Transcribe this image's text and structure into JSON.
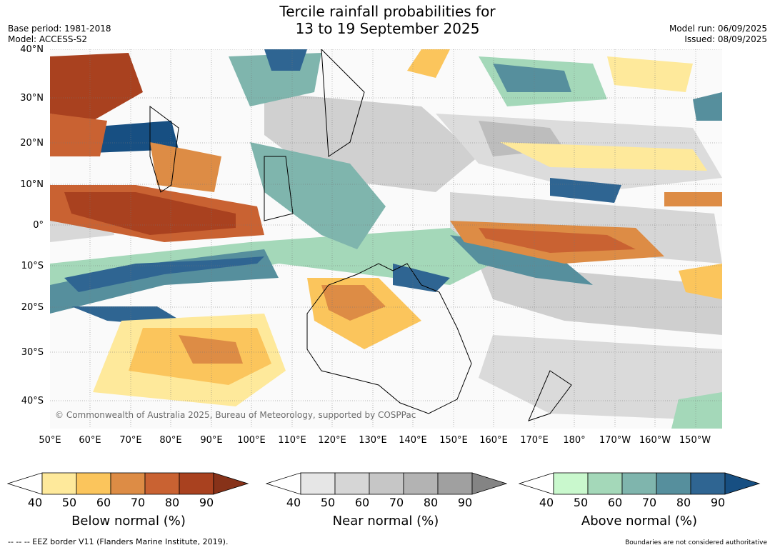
{
  "title_line1": "Tercile rainfall probabilities for",
  "title_line2": "13 to 19 September 2025",
  "base_period": "Base period: 1981-2018",
  "model": "Model: ACCESS-S2",
  "model_run": "Model run: 06/09/2025",
  "issued": "Issued: 08/09/2025",
  "copyright": "© Commonwealth of Australia 2025, Bureau of Meteorology, supported by COSPPac",
  "lat_labels": [
    "40°N",
    "30°N",
    "20°N",
    "10°N",
    "0°",
    "10°S",
    "20°S",
    "30°S",
    "40°S"
  ],
  "lon_labels": [
    "50°E",
    "60°E",
    "70°E",
    "80°E",
    "90°E",
    "100°E",
    "110°E",
    "120°E",
    "130°E",
    "140°E",
    "150°E",
    "160°E",
    "170°E",
    "180°",
    "170°W",
    "160°W",
    "150°W"
  ],
  "colorbars": [
    {
      "title": "Below normal (%)",
      "ticks": [
        "40",
        "50",
        "60",
        "70",
        "80",
        "90"
      ],
      "colors": [
        "#ffffff",
        "#fee99b",
        "#fbc55c",
        "#dd8c45",
        "#c96232",
        "#a9411f",
        "#873219"
      ]
    },
    {
      "title": "Near normal (%)",
      "ticks": [
        "40",
        "50",
        "60",
        "70",
        "80",
        "90"
      ],
      "colors": [
        "#ffffff",
        "#e6e6e6",
        "#d6d6d6",
        "#c6c6c6",
        "#b3b3b3",
        "#a0a0a0",
        "#848484"
      ]
    },
    {
      "title": "Above normal (%)",
      "ticks": [
        "40",
        "50",
        "60",
        "70",
        "80",
        "90"
      ],
      "colors": [
        "#ffffff",
        "#c9f8cd",
        "#a4d8b9",
        "#7fb5ad",
        "#568f9d",
        "#2f6592",
        "#174f82"
      ]
    }
  ],
  "footer_left": "--  --  -- EEZ border V11 (Flanders Marine Institute, 2019).",
  "footer_right": "Boundaries are not considered authoritative"
}
